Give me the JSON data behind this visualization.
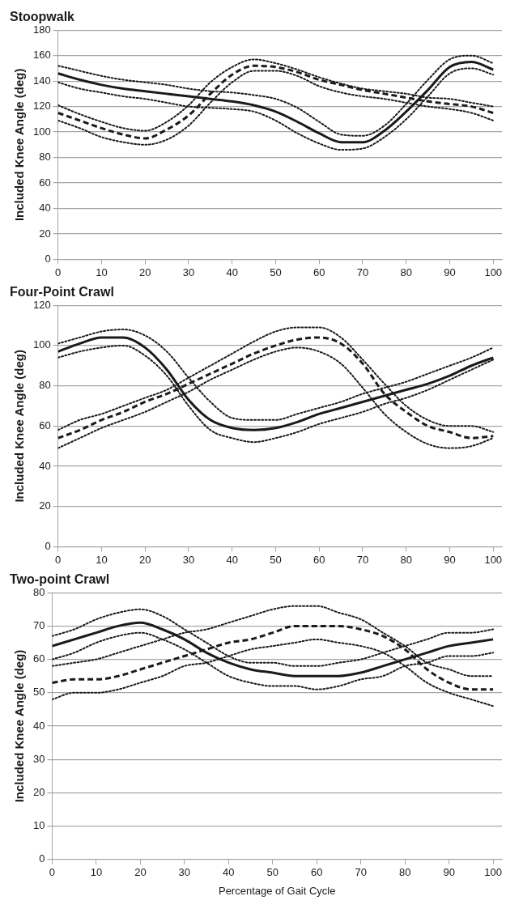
{
  "chart_data": [
    {
      "type": "line",
      "title": "Stoopwalk",
      "ylabel": "Included Knee Angle (deg)",
      "x": [
        0,
        5,
        10,
        15,
        20,
        25,
        30,
        35,
        40,
        45,
        50,
        55,
        60,
        65,
        70,
        75,
        80,
        85,
        90,
        95,
        100
      ],
      "xlim": [
        0,
        102
      ],
      "xticks": [
        0,
        10,
        20,
        30,
        40,
        50,
        60,
        70,
        80,
        90,
        100
      ],
      "ylim": [
        0,
        180
      ],
      "yticks": [
        0,
        20,
        40,
        60,
        80,
        100,
        120,
        140,
        160,
        180
      ],
      "grid": "y",
      "series": [
        {
          "color": "#1a1a1a",
          "line_style": "dotted",
          "values": [
            152,
            148,
            144,
            141,
            139,
            137,
            134,
            132,
            131,
            129,
            126,
            119,
            108,
            98,
            97,
            105,
            122,
            141,
            157,
            160,
            154
          ]
        },
        {
          "color": "#1a1a1a",
          "line_style": "dotted",
          "values": [
            139,
            134,
            131,
            128,
            126,
            123,
            120,
            119,
            118,
            116,
            109,
            99,
            91,
            86,
            87,
            96,
            110,
            128,
            146,
            150,
            145
          ]
        },
        {
          "color": "#1a1a1a",
          "line_style": "dotted",
          "values": [
            121,
            114,
            108,
            103,
            101,
            108,
            121,
            139,
            151,
            157,
            154,
            149,
            143,
            138,
            134,
            132,
            130,
            127,
            126,
            123,
            120
          ]
        },
        {
          "color": "#1a1a1a",
          "line_style": "dotted",
          "values": [
            109,
            103,
            96,
            92,
            90,
            94,
            105,
            123,
            139,
            148,
            148,
            144,
            136,
            131,
            128,
            126,
            123,
            120,
            118,
            115,
            109
          ]
        },
        {
          "color": "#1a1a1a",
          "line_style": "solid",
          "values": [
            146,
            141,
            137,
            134,
            132,
            130,
            128,
            126,
            124,
            121,
            116,
            108,
            99,
            92,
            92,
            101,
            116,
            133,
            151,
            155,
            149
          ]
        },
        {
          "color": "#1a1a1a",
          "line_style": "dashed",
          "values": [
            115,
            109,
            103,
            98,
            95,
            102,
            113,
            130,
            145,
            152,
            151,
            147,
            141,
            137,
            133,
            130,
            127,
            124,
            122,
            120,
            115
          ]
        }
      ]
    },
    {
      "type": "line",
      "title": "Four-Point Crawl",
      "ylabel": "Included Knee Angle (deg)",
      "x": [
        0,
        5,
        10,
        15,
        20,
        25,
        30,
        35,
        40,
        45,
        50,
        55,
        60,
        65,
        70,
        75,
        80,
        85,
        90,
        95,
        100
      ],
      "xlim": [
        0,
        102
      ],
      "xticks": [
        0,
        10,
        20,
        30,
        40,
        50,
        60,
        70,
        80,
        90,
        100
      ],
      "ylim": [
        0,
        120
      ],
      "yticks": [
        0,
        20,
        40,
        60,
        80,
        100,
        120
      ],
      "grid": "y",
      "series": [
        {
          "color": "#1a1a1a",
          "line_style": "dotted",
          "values": [
            101,
            104,
            107,
            108,
            105,
            97,
            84,
            72,
            64,
            63,
            63,
            66,
            69,
            72,
            76,
            79,
            82,
            86,
            90,
            94,
            99
          ]
        },
        {
          "color": "#1a1a1a",
          "line_style": "dotted",
          "values": [
            94,
            97,
            99,
            100,
            95,
            85,
            70,
            58,
            54,
            52,
            54,
            57,
            61,
            64,
            67,
            71,
            74,
            78,
            83,
            88,
            93
          ]
        },
        {
          "color": "#1a1a1a",
          "line_style": "dotted",
          "values": [
            58,
            63,
            66,
            70,
            74,
            78,
            84,
            90,
            96,
            102,
            107,
            109,
            109,
            104,
            93,
            81,
            70,
            63,
            60,
            60,
            57
          ]
        },
        {
          "color": "#1a1a1a",
          "line_style": "dotted",
          "values": [
            49,
            54,
            59,
            63,
            67,
            72,
            77,
            83,
            88,
            93,
            97,
            99,
            97,
            91,
            79,
            66,
            57,
            51,
            49,
            50,
            54
          ]
        },
        {
          "color": "#1a1a1a",
          "line_style": "solid",
          "values": [
            97,
            101,
            104,
            104,
            99,
            88,
            73,
            63,
            59,
            58,
            59,
            62,
            66,
            69,
            72,
            75,
            78,
            81,
            85,
            90,
            94
          ]
        },
        {
          "color": "#1a1a1a",
          "line_style": "dashed",
          "values": [
            54,
            58,
            63,
            67,
            72,
            76,
            81,
            86,
            91,
            96,
            100,
            103,
            104,
            101,
            91,
            76,
            67,
            60,
            57,
            54,
            55
          ]
        }
      ]
    },
    {
      "type": "line",
      "title": "Two-point Crawl",
      "xlabel": "Percentage of Gait Cycle",
      "ylabel": "Included Knee Angle (deg)",
      "x": [
        0,
        5,
        10,
        15,
        20,
        25,
        30,
        35,
        40,
        45,
        50,
        55,
        60,
        65,
        70,
        75,
        80,
        85,
        90,
        95,
        100
      ],
      "xlim": [
        0,
        102
      ],
      "xticks": [
        0,
        10,
        20,
        30,
        40,
        50,
        60,
        70,
        80,
        90,
        100
      ],
      "ylim": [
        0,
        80
      ],
      "yticks": [
        0,
        10,
        20,
        30,
        40,
        50,
        60,
        70,
        80
      ],
      "grid": "y",
      "series": [
        {
          "color": "#1a1a1a",
          "line_style": "dotted",
          "values": [
            67,
            69,
            72,
            74,
            75,
            73,
            69,
            65,
            61,
            59,
            59,
            58,
            58,
            59,
            60,
            62,
            64,
            66,
            68,
            68,
            69
          ]
        },
        {
          "color": "#1a1a1a",
          "line_style": "dotted",
          "values": [
            60,
            62,
            65,
            67,
            68,
            66,
            63,
            59,
            55,
            53,
            52,
            52,
            51,
            52,
            54,
            55,
            58,
            59,
            61,
            61,
            62
          ]
        },
        {
          "color": "#1a1a1a",
          "line_style": "dotted",
          "values": [
            58,
            59,
            60,
            62,
            64,
            66,
            68,
            69,
            71,
            73,
            75,
            76,
            76,
            74,
            72,
            68,
            64,
            59,
            57,
            55,
            55
          ]
        },
        {
          "color": "#1a1a1a",
          "line_style": "dotted",
          "values": [
            48,
            50,
            50,
            51,
            53,
            55,
            58,
            59,
            61,
            63,
            64,
            65,
            66,
            65,
            64,
            62,
            58,
            53,
            50,
            48,
            46
          ]
        },
        {
          "color": "#1a1a1a",
          "line_style": "solid",
          "values": [
            64,
            66,
            68,
            70,
            71,
            69,
            66,
            62,
            59,
            57,
            56,
            55,
            55,
            55,
            56,
            58,
            60,
            62,
            64,
            65,
            66
          ]
        },
        {
          "color": "#1a1a1a",
          "line_style": "dashed",
          "values": [
            53,
            54,
            54,
            55,
            57,
            59,
            61,
            63,
            65,
            66,
            68,
            70,
            70,
            70,
            69,
            67,
            63,
            57,
            53,
            51,
            51
          ]
        }
      ]
    }
  ]
}
